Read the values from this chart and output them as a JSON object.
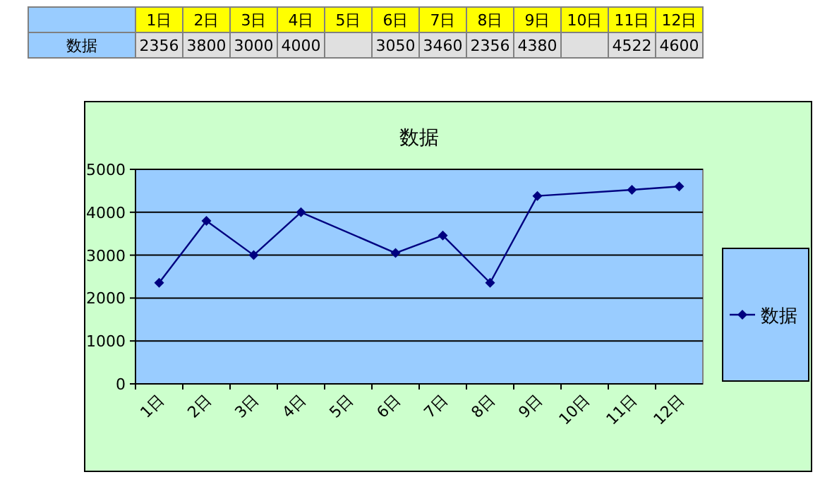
{
  "chart_data": {
    "type": "line",
    "title": "数据",
    "categories": [
      "1日",
      "2日",
      "3日",
      "4日",
      "5日",
      "6日",
      "7日",
      "8日",
      "9日",
      "10日",
      "11日",
      "12日"
    ],
    "series": [
      {
        "name": "数据",
        "color": "#000080",
        "values": [
          2356,
          3800,
          3000,
          4000,
          null,
          3050,
          3460,
          2356,
          4380,
          null,
          4522,
          4600
        ]
      }
    ],
    "ylim": [
      0,
      5000
    ],
    "yticks": [
      0,
      1000,
      2000,
      3000,
      4000,
      5000
    ],
    "grid": "y",
    "legend": "right",
    "marker": "diamond",
    "line_style": "solid",
    "data_labels": true
  }
}
